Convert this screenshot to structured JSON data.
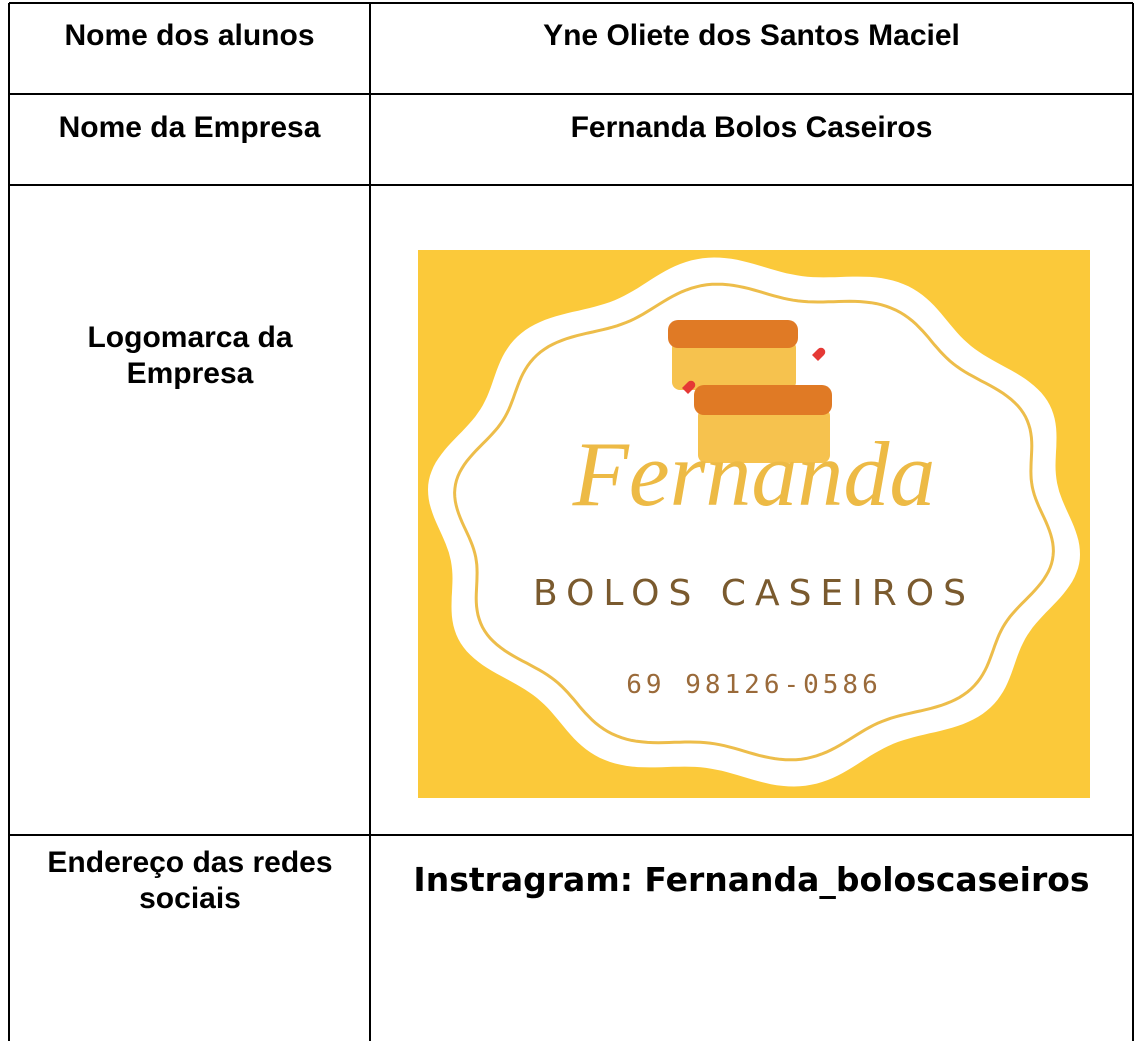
{
  "table": {
    "rows": [
      [
        "Nome dos alunos",
        "Yne Oliete dos Santos Maciel"
      ],
      [
        "Nome da Empresa",
        "Fernanda Bolos Caseiros"
      ],
      [
        "Logomarca da Empresa"
      ],
      [
        "Endereço das redes sociais",
        "Instragram: Fernanda_boloscaseiros"
      ]
    ]
  },
  "logo": {
    "script": "Fernanda",
    "tagline": "BOLOS CASEIROS",
    "phone": "69 98126-0586"
  }
}
